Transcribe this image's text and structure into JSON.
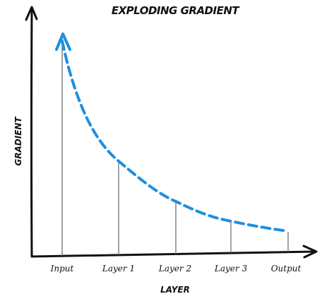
{
  "title": "EXPLODING GRADIENT",
  "y_axis_label": "GRADIENT",
  "x_axis_label": "LAYER",
  "layers": [
    "Input",
    "Layer 1",
    "Layer 2",
    "Layer 3",
    "Output"
  ]
}
